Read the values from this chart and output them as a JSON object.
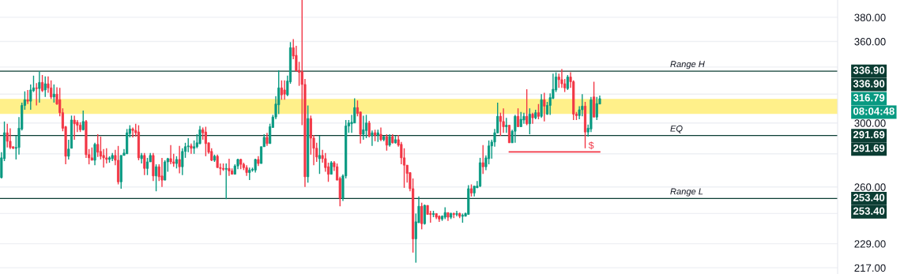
{
  "chart_data": {
    "type": "candlestick",
    "log": true,
    "ylim": [
      214,
      395
    ],
    "yticks": [
      {
        "value": 380,
        "label": "380.00"
      },
      {
        "value": 360,
        "label": "360.00"
      },
      {
        "value": 340,
        "label": null
      },
      {
        "value": 320,
        "label": null
      },
      {
        "value": 300,
        "label": "300.00"
      },
      {
        "value": 280,
        "label": null
      },
      {
        "value": 260,
        "label": "260.00"
      },
      {
        "value": 245,
        "label": null
      },
      {
        "value": 229,
        "label": "229.00"
      },
      {
        "value": 217,
        "label": "217.00"
      }
    ],
    "tick_labels": "y",
    "grid": "y",
    "categories": [
      null,
      null,
      null,
      null,
      null,
      null,
      null,
      null,
      null,
      null,
      null,
      null,
      null,
      null,
      null,
      null,
      null,
      null,
      null,
      null,
      null,
      null,
      null,
      null,
      null,
      null,
      null,
      null,
      null,
      null,
      null,
      null,
      null,
      null,
      null,
      null,
      null,
      null,
      null,
      null,
      null,
      null,
      null,
      null,
      null,
      null,
      null,
      null,
      null,
      null,
      null,
      null,
      null,
      null,
      null,
      null,
      null,
      null,
      null,
      null,
      null,
      null,
      null,
      null,
      null,
      null,
      null,
      null,
      null,
      null,
      null,
      null,
      null,
      null,
      null,
      null,
      null,
      null,
      null,
      null,
      null,
      null,
      null,
      null,
      null,
      null,
      null,
      null,
      null,
      null,
      null,
      null,
      null,
      null,
      null,
      null,
      null,
      null,
      null,
      null,
      null,
      null,
      null,
      null,
      null,
      null,
      null,
      null,
      null,
      null,
      null,
      null,
      null,
      null,
      null,
      null,
      null,
      null,
      null,
      null,
      null,
      null,
      null,
      null,
      null,
      null,
      null,
      null,
      null,
      null,
      null,
      null,
      null,
      null,
      null,
      null,
      null,
      null,
      null,
      null,
      null,
      null,
      null,
      null,
      null,
      null,
      null,
      null,
      null,
      null,
      null,
      null,
      null,
      null,
      null,
      null,
      null,
      null,
      null,
      null,
      null,
      null,
      null,
      null,
      null,
      null,
      null,
      null,
      null,
      null,
      null,
      null,
      null,
      null,
      null,
      null,
      null,
      null,
      null,
      null,
      null,
      null,
      null,
      null,
      null,
      null,
      null,
      null,
      null,
      null,
      null,
      null,
      null,
      null,
      null,
      null,
      null,
      null,
      null,
      null,
      null,
      null,
      null,
      null,
      null,
      null,
      null,
      null,
      null,
      null,
      null,
      null,
      null,
      null,
      null,
      null,
      null,
      null,
      null,
      null,
      null,
      null,
      null,
      null,
      null,
      null,
      null,
      null,
      null,
      null,
      null,
      null,
      null,
      null,
      null,
      null,
      null,
      null,
      null,
      null,
      null,
      null,
      null,
      null,
      null,
      null,
      null,
      null,
      null,
      null,
      null,
      null,
      null,
      null,
      null,
      null,
      null,
      null,
      null,
      null,
      null,
      null,
      null,
      null,
      null,
      null,
      null,
      null,
      null,
      null,
      null,
      null,
      null,
      null,
      null,
      null,
      null,
      null,
      null,
      null,
      null,
      null,
      null,
      null,
      null,
      null,
      null
    ],
    "series": [
      {
        "ohlc": [
          [
            265.5,
            281,
            265,
            277.5
          ],
          [
            277,
            301,
            275.5,
            293.5
          ],
          [
            293.5,
            299.5,
            284,
            288
          ],
          [
            288,
            296.5,
            283,
            284
          ],
          [
            284.5,
            284.5,
            283,
            283.5
          ],
          [
            283.5,
            291.5,
            276.5,
            284
          ],
          [
            284,
            304,
            279.5,
            296.5
          ],
          [
            296,
            314,
            295,
            312
          ],
          [
            312,
            322,
            309,
            316
          ],
          [
            316,
            323,
            313,
            315
          ],
          [
            315,
            327,
            309,
            323
          ],
          [
            322.5,
            333.5,
            321.5,
            324.5
          ],
          [
            324.5,
            328,
            312,
            324
          ],
          [
            324,
            337,
            314,
            328.5
          ],
          [
            328.5,
            334,
            321.5,
            322.5
          ],
          [
            323,
            333,
            318,
            327.5
          ],
          [
            327.5,
            333,
            321,
            324.5
          ],
          [
            324.5,
            330,
            316.5,
            318
          ],
          [
            318,
            327,
            314,
            320
          ],
          [
            320,
            325,
            312.5,
            313
          ],
          [
            316,
            324.5,
            304.5,
            307
          ],
          [
            307,
            310,
            294.5,
            296.5
          ],
          [
            297.5,
            298,
            273.5,
            278.5
          ],
          [
            278.5,
            289,
            276.5,
            283
          ],
          [
            283.5,
            305,
            283.5,
            302
          ],
          [
            302,
            305,
            289,
            299.5
          ],
          [
            300.5,
            302,
            294,
            298.5
          ],
          [
            298.5,
            300.5,
            294,
            295.5
          ],
          [
            295.5,
            308.5,
            295,
            301
          ],
          [
            301,
            302,
            277.5,
            279.5
          ],
          [
            279.5,
            283,
            273.5,
            277.5
          ],
          [
            277.5,
            284,
            276,
            276
          ],
          [
            276,
            287,
            273,
            286
          ],
          [
            286,
            292.5,
            278,
            281
          ],
          [
            281.5,
            291,
            276.5,
            278.5
          ],
          [
            279,
            283,
            271.5,
            277.5
          ],
          [
            277.5,
            283.5,
            274,
            276.5
          ],
          [
            276.5,
            278.5,
            274.5,
            277.5
          ],
          [
            277,
            280.5,
            275.5,
            279
          ],
          [
            279,
            282.5,
            273,
            276
          ],
          [
            276,
            285,
            261.5,
            263
          ],
          [
            263,
            279,
            259,
            279
          ],
          [
            279,
            283,
            279,
            280.5
          ],
          [
            280,
            296,
            280,
            293.5
          ],
          [
            293,
            298.5,
            290.5,
            296
          ],
          [
            296,
            297,
            290.5,
            295
          ],
          [
            295,
            299.5,
            291,
            293.5
          ],
          [
            294,
            298.5,
            276,
            277.5
          ],
          [
            277,
            280.5,
            274,
            279
          ],
          [
            279,
            280.5,
            267,
            271
          ],
          [
            271,
            277.5,
            267,
            275
          ],
          [
            275,
            280.5,
            275,
            279
          ],
          [
            279,
            280.5,
            263.5,
            266.5
          ],
          [
            266.5,
            273.5,
            257.5,
            272
          ],
          [
            272,
            273.5,
            263.5,
            266
          ],
          [
            266.5,
            277.5,
            260,
            264
          ],
          [
            264,
            276,
            264,
            275
          ],
          [
            275,
            277.5,
            269,
            277
          ],
          [
            277,
            285.5,
            273.5,
            275
          ],
          [
            275,
            280,
            272,
            274
          ],
          [
            274,
            278.5,
            271,
            276.5
          ],
          [
            276.5,
            285,
            268,
            272
          ],
          [
            272,
            283.5,
            267,
            281.5
          ],
          [
            281.5,
            287,
            277.5,
            284.5
          ],
          [
            284.5,
            290,
            281,
            285
          ],
          [
            285,
            286.5,
            280,
            283.5
          ],
          [
            283.5,
            288.5,
            280,
            284.5
          ],
          [
            284.5,
            292.5,
            283.5,
            287
          ],
          [
            286.5,
            298,
            286,
            295.5
          ],
          [
            295.5,
            297,
            289,
            293.5
          ],
          [
            294,
            297.5,
            278.5,
            286.5
          ],
          [
            287,
            287,
            280,
            281
          ],
          [
            281.5,
            283.5,
            275.5,
            276
          ],
          [
            276,
            279.5,
            275,
            278.5
          ],
          [
            278.5,
            279.5,
            271.5,
            271.5
          ],
          [
            271.5,
            274,
            267,
            271
          ],
          [
            271,
            274,
            269.5,
            270.5
          ],
          [
            270.5,
            274,
            253,
            271
          ],
          [
            271,
            277,
            266.5,
            269.5
          ],
          [
            269.5,
            271,
            267.5,
            267.5
          ],
          [
            267.5,
            273.5,
            267.5,
            272.5
          ],
          [
            272.5,
            277,
            270.5,
            276.5
          ],
          [
            276.5,
            277,
            270.5,
            273.5
          ],
          [
            273.5,
            274.5,
            270,
            271.5
          ],
          [
            271.5,
            273,
            266.5,
            268.5
          ],
          [
            268.5,
            271.5,
            264,
            270
          ],
          [
            270,
            271.5,
            269,
            270.5
          ],
          [
            270,
            277,
            268.5,
            276.5
          ],
          [
            276.5,
            278.5,
            272.5,
            274
          ],
          [
            274,
            284.5,
            274,
            284.5
          ],
          [
            284.5,
            292.5,
            284.5,
            290.5
          ],
          [
            290.5,
            293.5,
            285,
            286.5
          ],
          [
            286.5,
            299.5,
            286.5,
            297.5
          ],
          [
            297,
            305.5,
            297,
            304
          ],
          [
            304,
            318.5,
            302.5,
            313
          ],
          [
            312.5,
            337.5,
            306,
            324.5
          ],
          [
            324.5,
            330,
            316,
            319.5
          ],
          [
            323,
            330,
            316,
            320
          ],
          [
            319.5,
            333.5,
            318.5,
            329.5
          ],
          [
            329,
            359.5,
            327.5,
            355
          ],
          [
            355,
            362,
            346,
            348.5
          ],
          [
            349,
            356.5,
            337,
            337
          ],
          [
            337.5,
            344,
            326,
            336
          ],
          [
            336.5,
            395,
            298.5,
            327
          ],
          [
            327,
            331,
            260,
            266
          ],
          [
            266,
            312,
            262.5,
            303
          ],
          [
            303,
            305,
            279.5,
            290
          ],
          [
            290,
            292,
            273,
            283.5
          ],
          [
            283.5,
            287,
            275,
            278
          ],
          [
            277,
            291.5,
            267.7,
            279
          ],
          [
            279,
            282.5,
            274.5,
            277
          ],
          [
            277,
            280.5,
            269,
            271.5
          ],
          [
            272,
            274.5,
            263,
            267.5
          ],
          [
            267.5,
            275.5,
            267.5,
            274.5
          ],
          [
            274.5,
            275.5,
            269.5,
            272
          ],
          [
            272,
            274,
            264,
            264
          ],
          [
            265,
            266,
            249,
            253.5
          ],
          [
            253.5,
            267.5,
            252,
            266.5
          ],
          [
            266.5,
            302,
            265,
            298
          ],
          [
            298,
            302,
            293.5,
            300
          ],
          [
            299.5,
            305.5,
            293.5,
            300.5
          ],
          [
            300,
            317,
            300,
            310.5
          ],
          [
            310.5,
            315.5,
            304.5,
            306.5
          ],
          [
            307.5,
            307.5,
            286.5,
            292.5
          ],
          [
            292.5,
            305,
            289,
            295.5
          ],
          [
            295,
            305.5,
            290,
            300
          ],
          [
            300,
            301.5,
            290.5,
            291.5
          ],
          [
            291.5,
            295,
            285,
            293.5
          ],
          [
            293.5,
            295.5,
            288,
            292
          ],
          [
            292,
            295.5,
            287.5,
            293.5
          ],
          [
            292.5,
            297,
            288,
            289
          ],
          [
            289,
            291.5,
            288,
            291
          ],
          [
            291,
            292.5,
            282,
            285.5
          ],
          [
            285.5,
            292.5,
            284.5,
            291
          ],
          [
            291,
            292.5,
            286.5,
            287
          ],
          [
            287,
            291.5,
            286.5,
            289
          ],
          [
            289,
            292,
            284.5,
            285.5
          ],
          [
            286,
            287.5,
            273.5,
            277.5
          ],
          [
            277.5,
            283.5,
            259.5,
            273
          ],
          [
            273,
            273,
            262.5,
            268
          ],
          [
            268.5,
            268.5,
            257.5,
            259
          ],
          [
            259,
            265,
            224.5,
            231.5
          ],
          [
            231.5,
            245,
            219.5,
            240.5
          ],
          [
            240,
            254.5,
            240,
            249
          ],
          [
            249,
            251,
            236.5,
            239.5
          ],
          [
            239.5,
            250,
            239,
            249.5
          ],
          [
            249.5,
            249.5,
            244.5,
            244.5
          ],
          [
            245,
            246.5,
            240,
            244.5
          ],
          [
            244.5,
            246.5,
            243,
            245
          ],
          [
            245,
            245,
            242,
            243
          ],
          [
            243.5,
            244,
            240.5,
            242
          ],
          [
            242,
            244,
            241,
            243.5
          ],
          [
            243,
            248.5,
            242,
            245.5
          ],
          [
            245.5,
            245.5,
            241,
            243
          ],
          [
            243,
            245.5,
            242,
            245
          ],
          [
            245,
            245.5,
            242.5,
            244.5
          ],
          [
            244.5,
            246.5,
            243.5,
            245
          ],
          [
            245,
            245.5,
            242.5,
            243.5
          ],
          [
            243.5,
            245,
            240,
            244
          ],
          [
            243.5,
            245.5,
            243.5,
            245
          ],
          [
            244.5,
            261,
            244.5,
            259
          ],
          [
            259,
            261.5,
            254.5,
            256.5
          ],
          [
            256.5,
            260.5,
            254.5,
            260.5
          ],
          [
            259.5,
            263.5,
            259.5,
            260.5
          ],
          [
            260.5,
            277.5,
            260,
            274.5
          ],
          [
            274.5,
            285.5,
            267.7,
            272
          ],
          [
            272,
            279,
            270,
            277.5
          ],
          [
            277,
            288.5,
            273.5,
            285
          ],
          [
            285,
            289,
            277,
            287.5
          ],
          [
            287.5,
            296,
            284.5,
            293.5
          ],
          [
            293.5,
            314,
            293,
            304.5
          ],
          [
            304.5,
            307,
            291.5,
            301
          ],
          [
            301,
            310,
            293.5,
            297.5
          ],
          [
            297.5,
            303.5,
            293.5,
            298.5
          ],
          [
            298.5,
            298.5,
            287,
            287
          ],
          [
            287,
            295.5,
            287,
            294.5
          ],
          [
            294.5,
            305.5,
            287,
            304.5
          ],
          [
            304.5,
            310,
            297.5,
            297.5
          ],
          [
            297.5,
            307.5,
            297.5,
            302.5
          ],
          [
            302,
            307,
            299.5,
            304.5
          ],
          [
            304.5,
            323.5,
            298.5,
            299.5
          ],
          [
            299.5,
            310,
            292.5,
            306
          ],
          [
            306,
            307,
            299.5,
            303.5
          ],
          [
            303.5,
            309,
            302.5,
            307
          ],
          [
            307,
            313,
            302.5,
            304.5
          ],
          [
            304.5,
            320,
            303.5,
            316
          ],
          [
            316,
            321,
            301,
            311.5
          ],
          [
            306,
            314.5,
            305.5,
            312
          ],
          [
            312,
            320.5,
            305.5,
            317.5
          ],
          [
            317,
            335,
            316.5,
            323.5
          ],
          [
            323,
            336,
            321.5,
            332.5
          ],
          [
            332.5,
            335,
            324.5,
            330.5
          ],
          [
            330.5,
            338.5,
            324.5,
            327.5
          ],
          [
            327.5,
            331,
            321.5,
            324.5
          ],
          [
            324,
            334,
            323,
            332.5
          ],
          [
            332.5,
            336,
            324.5,
            329
          ],
          [
            329,
            330,
            302,
            306
          ],
          [
            306,
            307.5,
            302,
            305
          ],
          [
            305,
            311.5,
            302.5,
            309
          ],
          [
            309,
            320,
            304.5,
            311.5
          ],
          [
            311.5,
            314.5,
            283.5,
            294
          ],
          [
            294,
            299,
            291,
            296.5
          ],
          [
            296,
            318,
            294,
            316
          ],
          [
            318,
            329,
            303.8,
            304
          ],
          [
            304,
            318,
            302,
            313.3
          ],
          [
            313,
            319,
            313,
            316.79
          ],
          null,
          null,
          null,
          null,
          null,
          null,
          null,
          null,
          null,
          null,
          null,
          null,
          null,
          null,
          null,
          null,
          null,
          null,
          null,
          null,
          null,
          null,
          null,
          null,
          null,
          null,
          null,
          null,
          null,
          null,
          null,
          null,
          null,
          null,
          null,
          null,
          null,
          null,
          null,
          null,
          null,
          null,
          null,
          null,
          null,
          null,
          null,
          null,
          null,
          null,
          null,
          null,
          null,
          null,
          null,
          null,
          null,
          null,
          null,
          null,
          null,
          null,
          null,
          null,
          null,
          null,
          null,
          null,
          null,
          null,
          null,
          null,
          null,
          null,
          null,
          null,
          null,
          null,
          null,
          null,
          null
        ],
        "colors": [
          "#089981",
          "#089981",
          "#f23645",
          "#f23645",
          "#f23645",
          "#089981",
          "#089981",
          "#089981",
          "#089981",
          "#f23645",
          "#089981",
          "#089981",
          "#f23645",
          "#089981",
          "#f23645",
          "#089981",
          "#f23645",
          "#f23645",
          "#089981",
          "#f23645",
          "#f23645",
          "#f23645",
          "#f23645",
          "#089981",
          "#089981",
          "#f23645",
          "#f23645",
          "#f23645",
          "#089981",
          "#f23645",
          "#f23645",
          "#f23645",
          "#089981",
          "#f23645",
          "#f23645",
          "#f23645",
          "#f23645",
          "#089981",
          "#089981",
          "#f23645",
          "#f23645",
          "#089981",
          "#089981",
          "#089981",
          "#089981",
          "#f23645",
          "#f23645",
          "#f23645",
          "#089981",
          "#f23645",
          "#089981",
          "#089981",
          "#f23645",
          "#089981",
          "#f23645",
          "#f23645",
          "#089981",
          "#089981",
          "#f23645",
          "#f23645",
          "#089981",
          "#f23645",
          "#089981",
          "#089981",
          "#089981",
          "#f23645",
          "#089981",
          "#089981",
          "#089981",
          "#f23645",
          "#f23645",
          "#f23645",
          "#f23645",
          "#089981",
          "#f23645",
          "#f23645",
          "#f23645",
          "#089981",
          "#f23645",
          "#f23645",
          "#089981",
          "#089981",
          "#f23645",
          "#f23645",
          "#f23645",
          "#089981",
          "#089981",
          "#089981",
          "#f23645",
          "#089981",
          "#089981",
          "#f23645",
          "#089981",
          "#089981",
          "#089981",
          "#089981",
          "#f23645",
          "#f23645",
          "#089981",
          "#089981",
          "#f23645",
          "#f23645",
          "#f23645",
          "#f23645",
          "#f23645",
          "#089981",
          "#f23645",
          "#f23645",
          "#f23645",
          "#089981",
          "#f23645",
          "#f23645",
          "#f23645",
          "#089981",
          "#f23645",
          "#f23645",
          "#f23645",
          "#089981",
          "#089981",
          "#089981",
          "#089981",
          "#089981",
          "#f23645",
          "#f23645",
          "#089981",
          "#089981",
          "#f23645",
          "#089981",
          "#f23645",
          "#089981",
          "#f23645",
          "#089981",
          "#f23645",
          "#089981",
          "#f23645",
          "#089981",
          "#f23645",
          "#f23645",
          "#f23645",
          "#f23645",
          "#f23645",
          "#f23645",
          "#089981",
          "#089981",
          "#f23645",
          "#089981",
          "#f23645",
          "#f23645",
          "#089981",
          "#f23645",
          "#f23645",
          "#089981",
          "#089981",
          "#f23645",
          "#089981",
          "#f23645",
          "#089981",
          "#f23645",
          "#089981",
          "#089981",
          "#089981",
          "#f23645",
          "#089981",
          "#089981",
          "#089981",
          "#f23645",
          "#089981",
          "#089981",
          "#089981",
          "#089981",
          "#089981",
          "#f23645",
          "#f23645",
          "#089981",
          "#f23645",
          "#089981",
          "#089981",
          "#f23645",
          "#089981",
          "#089981",
          "#f23645",
          "#089981",
          "#f23645",
          "#089981",
          "#f23645",
          "#089981",
          "#f23645",
          "#089981",
          "#089981",
          "#089981",
          "#089981",
          "#f23645",
          "#f23645",
          "#f23645",
          "#089981",
          "#f23645",
          "#f23645",
          "#f23645",
          "#089981",
          "#089981",
          "#f23645",
          "#089981",
          "#089981",
          "#f23645",
          "#089981",
          "#089981",
          null,
          null,
          null,
          null,
          null,
          null,
          null,
          null,
          null,
          null,
          null,
          null,
          null,
          null,
          null,
          null,
          null,
          null,
          null,
          null,
          null,
          null,
          null,
          null,
          null,
          null,
          null,
          null,
          null,
          null,
          null,
          null,
          null,
          null,
          null,
          null,
          null,
          null,
          null,
          null,
          null,
          null,
          null,
          null,
          null,
          null,
          null,
          null,
          null,
          null,
          null,
          null,
          null,
          null,
          null,
          null,
          null,
          null,
          null,
          null,
          null,
          null,
          null,
          null,
          null,
          null,
          null,
          null,
          null,
          null,
          null,
          null,
          null,
          null,
          null,
          null,
          null,
          null,
          null,
          null,
          null
        ]
      },
      {
        "type": "line",
        "name": "$",
        "color": "#f23645",
        "values": [
          null,
          null,
          null,
          null,
          null,
          null,
          null,
          null,
          null,
          null,
          null,
          null,
          null,
          null,
          null,
          null,
          null,
          null,
          null,
          null,
          null,
          null,
          null,
          null,
          null,
          null,
          null,
          null,
          null,
          null,
          null,
          null,
          null,
          null,
          null,
          null,
          null,
          null,
          null,
          null,
          null,
          null,
          null,
          null,
          null,
          null,
          null,
          null,
          null,
          null,
          null,
          null,
          null,
          null,
          null,
          null,
          null,
          null,
          null,
          null,
          null,
          null,
          null,
          null,
          null,
          null,
          null,
          null,
          null,
          null,
          null,
          null,
          null,
          null,
          null,
          null,
          null,
          null,
          null,
          null,
          null,
          null,
          null,
          null,
          null,
          null,
          null,
          null,
          null,
          null,
          null,
          null,
          null,
          null,
          null,
          null,
          null,
          null,
          null,
          null,
          null,
          null,
          null,
          null,
          null,
          null,
          null,
          null,
          null,
          null,
          null,
          null,
          null,
          null,
          null,
          null,
          null,
          null,
          null,
          null,
          null,
          null,
          null,
          null,
          null,
          null,
          null,
          null,
          null,
          null,
          null,
          null,
          null,
          null,
          null,
          null,
          null,
          null,
          null,
          null,
          null,
          null,
          null,
          null,
          null,
          null,
          null,
          null,
          null,
          null,
          null,
          null,
          null,
          null,
          null,
          null,
          null,
          null,
          null,
          null,
          null,
          null,
          null,
          null,
          null,
          null,
          null,
          null,
          null,
          null,
          null,
          null,
          null,
          null,
          281.2,
          281.2,
          281.2,
          281.2,
          281.2,
          281.2,
          281.2,
          281.2,
          281.2,
          281.2,
          281.2,
          281.2,
          281.2,
          281.2,
          281.2,
          281.2,
          281.2,
          281.2,
          281.2,
          281.2,
          281.2,
          281.2,
          281.2,
          281.2,
          281.2,
          281.2,
          281.2,
          281.2,
          281.2,
          281.2,
          281.2,
          281.2,
          null,
          null,
          null,
          null,
          null,
          null,
          null,
          null,
          null,
          null,
          null,
          null,
          null,
          null,
          null,
          null,
          null,
          null,
          null,
          null,
          null,
          null,
          null,
          null,
          null,
          null,
          null,
          null,
          null,
          null,
          null,
          null,
          null,
          null,
          null,
          null,
          null,
          null,
          null,
          null,
          null,
          null,
          null,
          null,
          null,
          null,
          null,
          null,
          null,
          null,
          null,
          null,
          null,
          null,
          null,
          null,
          null,
          null,
          null,
          null,
          null,
          null,
          null,
          null,
          null,
          null,
          null,
          null,
          null,
          null,
          null,
          null,
          null,
          null,
          null,
          null,
          null,
          null,
          null,
          null,
          null
        ]
      }
    ],
    "ref_lines": [
      {
        "axis": "y",
        "value": 336.9,
        "label": "Range H",
        "color": "#0b3d33"
      },
      {
        "axis": "y",
        "value": 291.69,
        "label": "EQ",
        "color": "#0b3d33"
      },
      {
        "axis": "y",
        "value": 253.4,
        "label": "Range L",
        "color": "#0b3d33"
      }
    ],
    "bands": [
      {
        "axis": "y",
        "from": 306.2,
        "to": 316.6,
        "color": "#fff08a"
      }
    ],
    "annotations": [
      "336.90",
      "336.90",
      "316.79",
      "08:04:48",
      "291.69",
      "291.69",
      "253.40",
      "253.40"
    ]
  }
}
